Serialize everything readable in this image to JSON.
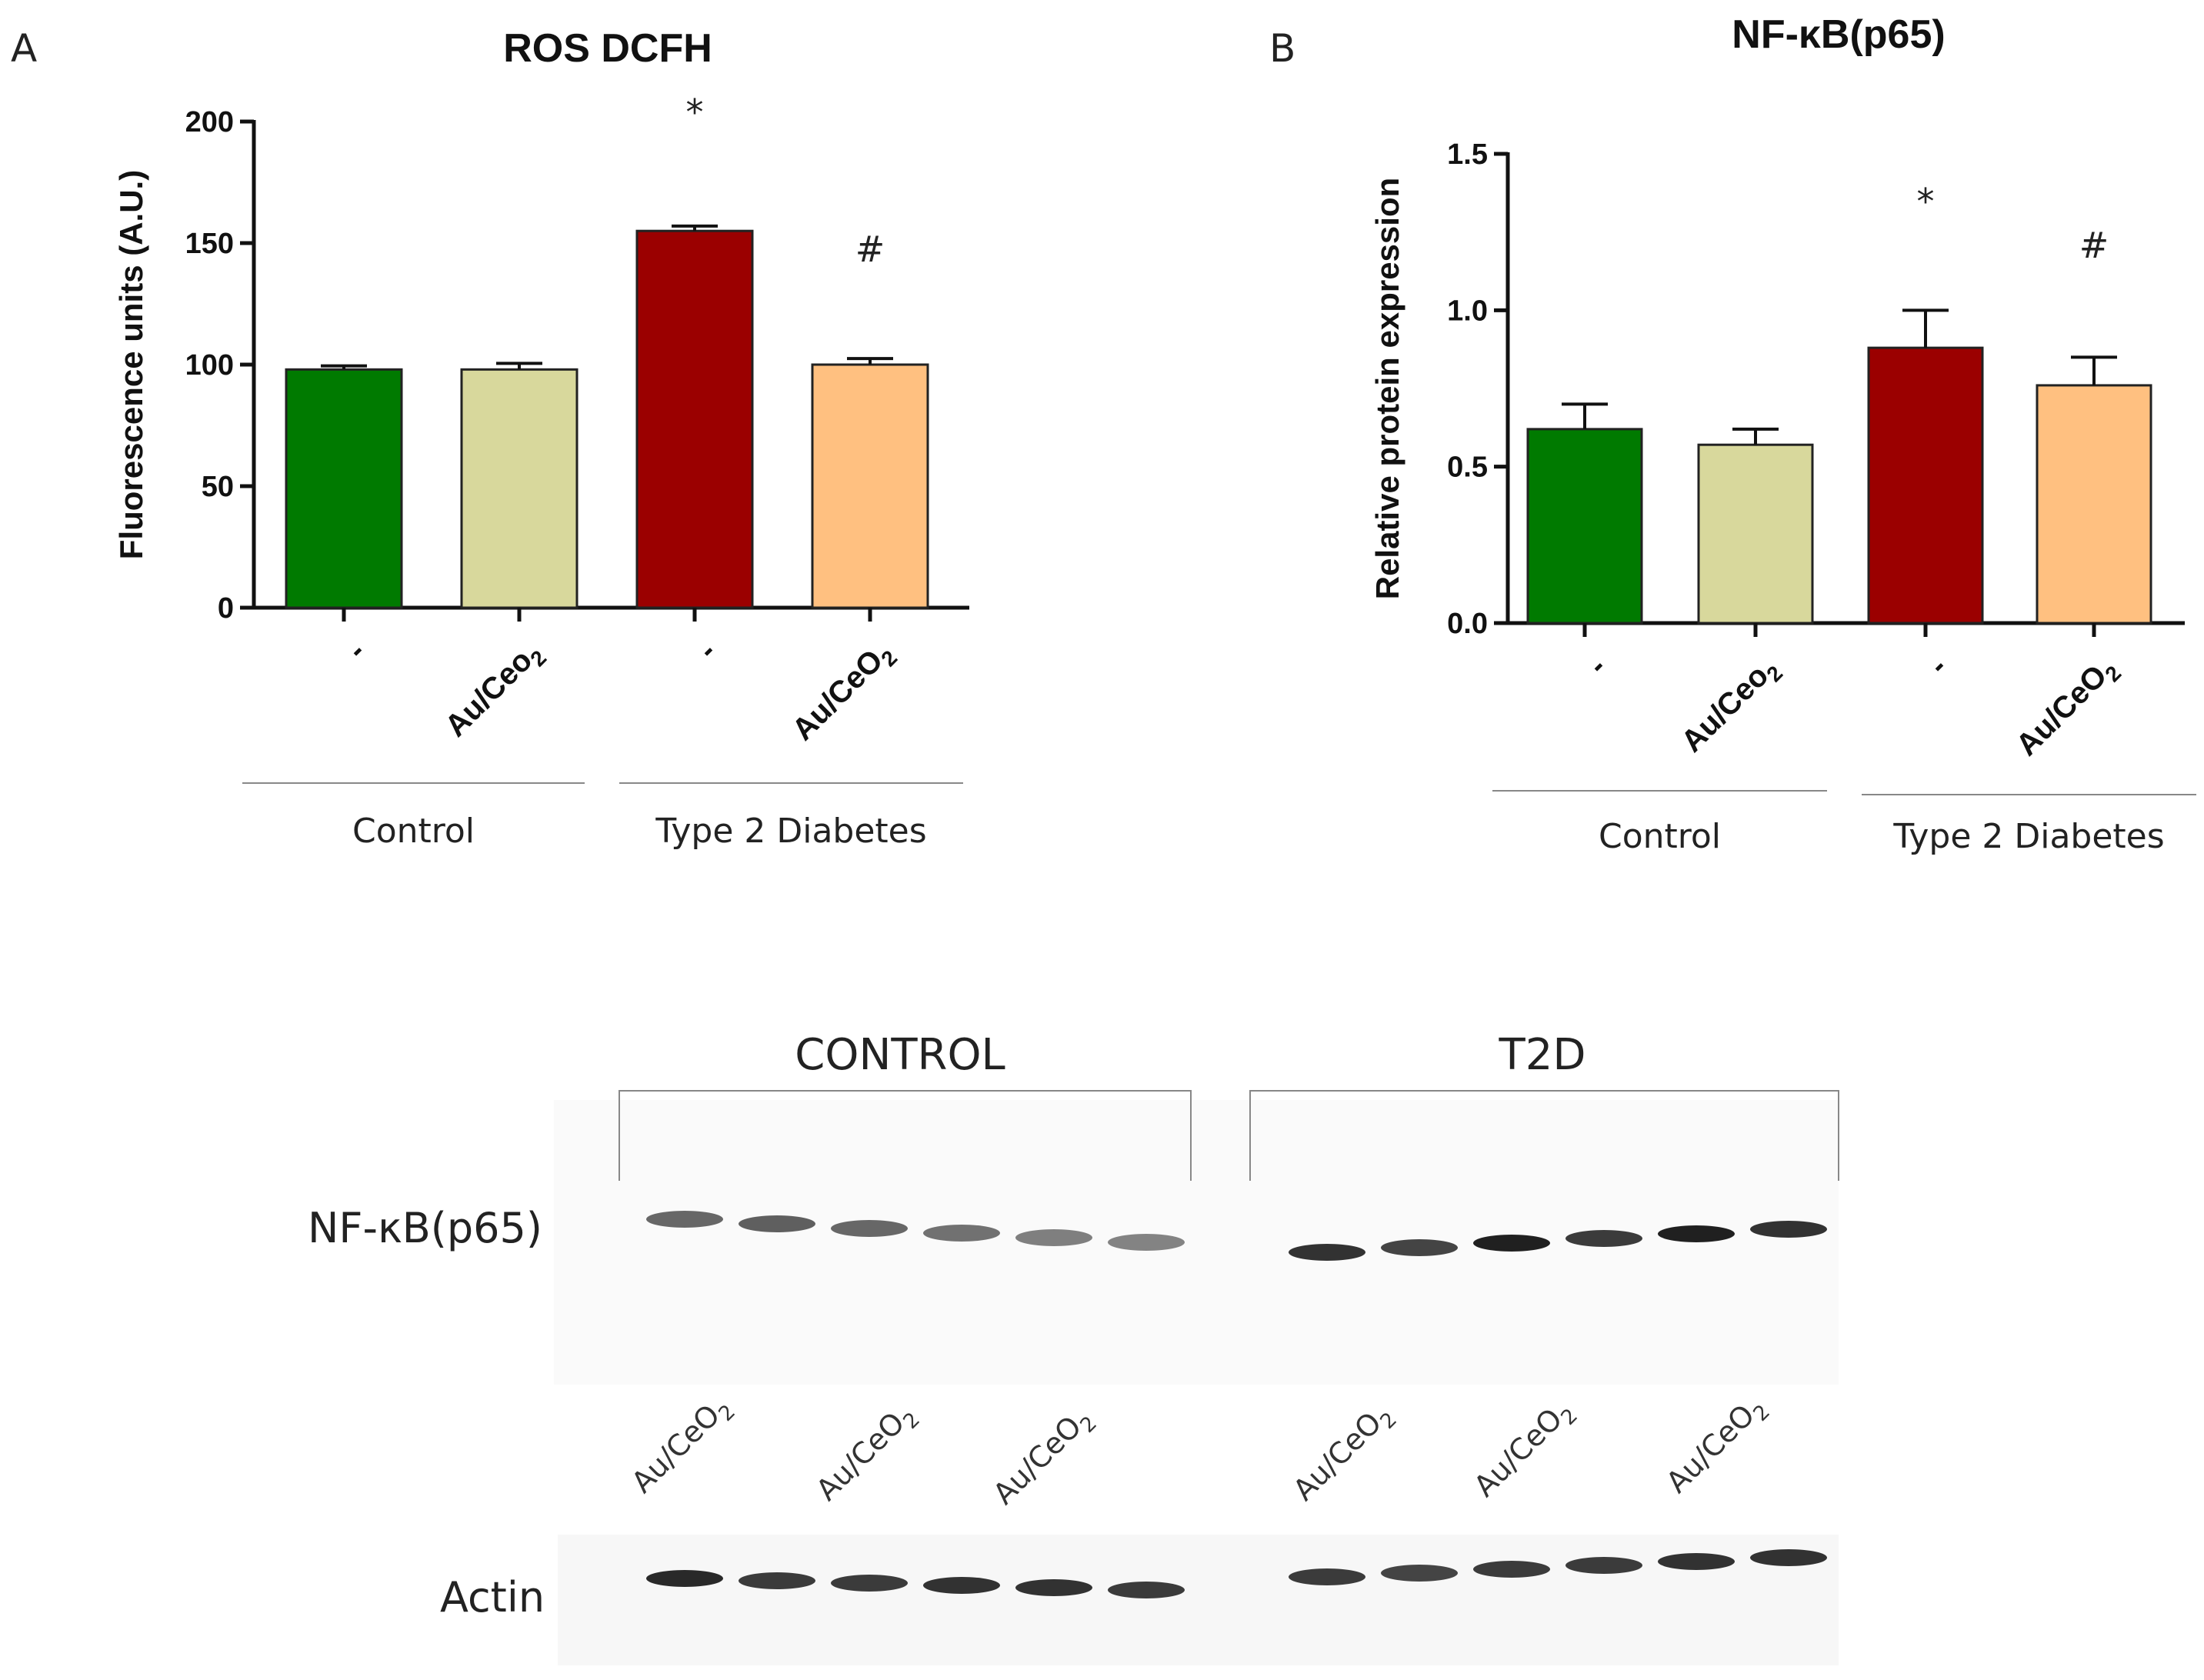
{
  "panels": {
    "a_letter": "A",
    "b_letter": "B"
  },
  "chart_data": [
    {
      "type": "bar",
      "title": "ROS DCFH",
      "xlabel": "",
      "ylabel": "Fluorescence units (A.U.)",
      "ylim": [
        0,
        200
      ],
      "yticks": [
        "0",
        "50",
        "100",
        "150",
        "200"
      ],
      "categories": [
        "-",
        "Au/Ceo2",
        "-",
        "Au/CeO2"
      ],
      "values": [
        98,
        98,
        155,
        100
      ],
      "errors": [
        1.5,
        2.5,
        2.0,
        2.5
      ],
      "colors": [
        "#007a00",
        "#d8d89c",
        "#9b0000",
        "#ffc080"
      ],
      "significance": [
        "",
        "",
        "*",
        "#"
      ],
      "groups": [
        {
          "label": "Control",
          "members": [
            0,
            1
          ]
        },
        {
          "label": "Type 2 Diabetes",
          "members": [
            2,
            3
          ]
        }
      ]
    },
    {
      "type": "bar",
      "title": "NF-κB(p65)",
      "xlabel": "",
      "ylabel": "Relative  protein expression",
      "ylim": [
        0,
        1.5
      ],
      "yticks": [
        "0.0",
        "0.5",
        "1.0",
        "1.5"
      ],
      "categories": [
        "-",
        "Au/Ceo2",
        "-",
        "Au/CeO2"
      ],
      "values": [
        0.62,
        0.57,
        0.88,
        0.76
      ],
      "errors": [
        0.08,
        0.05,
        0.12,
        0.09
      ],
      "colors": [
        "#007a00",
        "#d8d89c",
        "#9b0000",
        "#ffc080"
      ],
      "significance": [
        "",
        "",
        "*",
        "#"
      ],
      "groups": [
        {
          "label": "Control",
          "members": [
            0,
            1
          ]
        },
        {
          "label": "Type 2 Diabetes",
          "members": [
            2,
            3
          ]
        }
      ]
    }
  ],
  "blot": {
    "headers": [
      "CONTROL",
      "T2D"
    ],
    "row_labels": [
      "NF-κB(p65)",
      "Actin"
    ],
    "lane_labels": [
      "Au/CeO2",
      "Au/CeO2",
      "Au/CeO2",
      "Au/CeO2",
      "Au/CeO2",
      "Au/CeO2"
    ],
    "nfkb_intensity": {
      "control": [
        0.55,
        0.6,
        0.55,
        0.5,
        0.42,
        0.4
      ],
      "t2d": [
        0.85,
        0.75,
        0.95,
        0.8,
        0.95,
        0.85
      ]
    },
    "actin_intensity": {
      "control": [
        0.9,
        0.8,
        0.8,
        0.85,
        0.85,
        0.8
      ],
      "t2d": [
        0.8,
        0.75,
        0.8,
        0.8,
        0.85,
        0.85
      ]
    }
  }
}
